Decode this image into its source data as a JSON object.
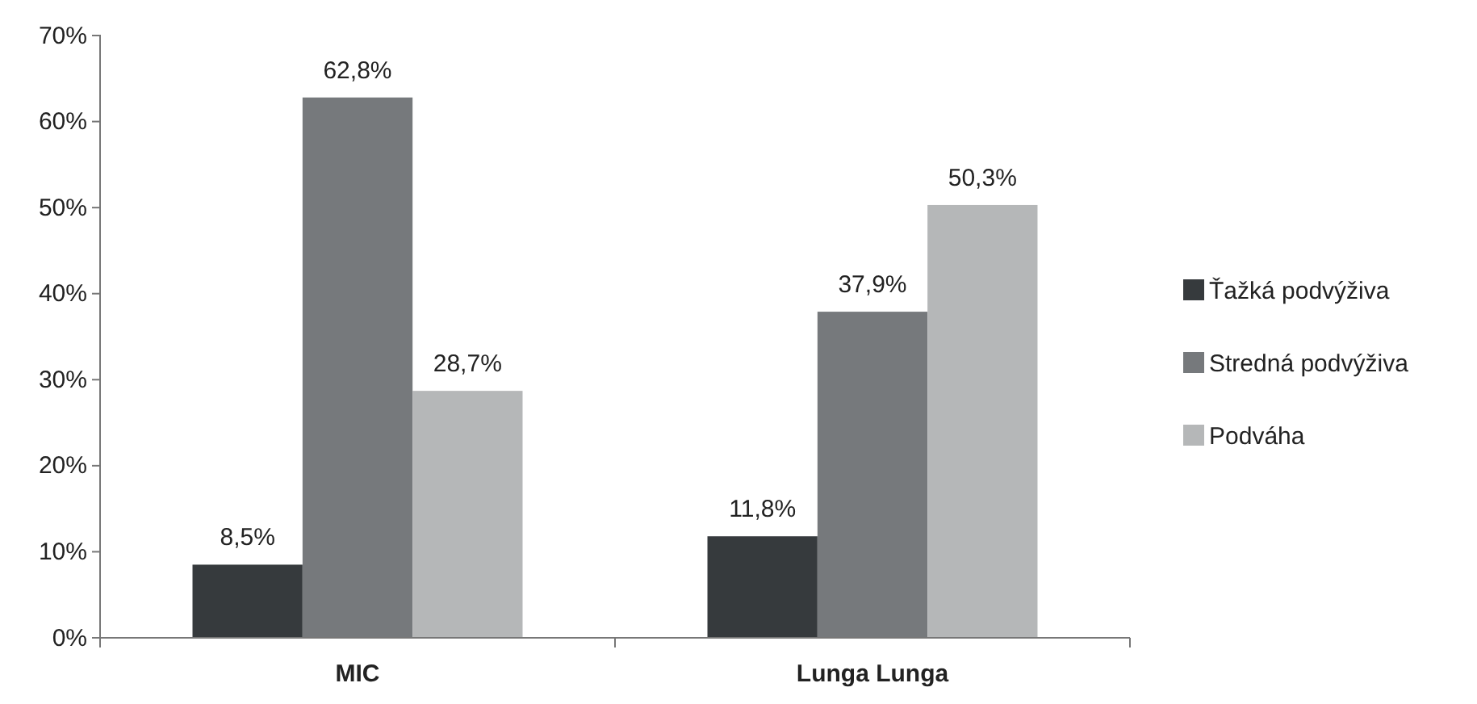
{
  "chart_data": {
    "type": "bar",
    "categories": [
      "MIC",
      "Lunga Lunga"
    ],
    "series": [
      {
        "name": "Ťažká podvýživa",
        "color": "#363a3d",
        "values": [
          8.5,
          11.8
        ],
        "value_labels": [
          "8,5%",
          "11,8%"
        ]
      },
      {
        "name": "Stredná podvýživa",
        "color": "#76797c",
        "values": [
          62.8,
          37.9
        ],
        "value_labels": [
          "62,8%",
          "37,9%"
        ]
      },
      {
        "name": "Podváha",
        "color": "#b5b7b8",
        "values": [
          28.7,
          50.3
        ],
        "value_labels": [
          "28,7%",
          "50,3%"
        ]
      }
    ],
    "ylim": [
      0,
      70
    ],
    "yticks": [
      {
        "value": 0,
        "label": "0%"
      },
      {
        "value": 10,
        "label": "10%"
      },
      {
        "value": 20,
        "label": "20%"
      },
      {
        "value": 30,
        "label": "30%"
      },
      {
        "value": 40,
        "label": "40%"
      },
      {
        "value": 50,
        "label": "50%"
      },
      {
        "value": 60,
        "label": "60%"
      },
      {
        "value": 70,
        "label": "70%"
      }
    ],
    "grid": false,
    "legend": "right"
  }
}
